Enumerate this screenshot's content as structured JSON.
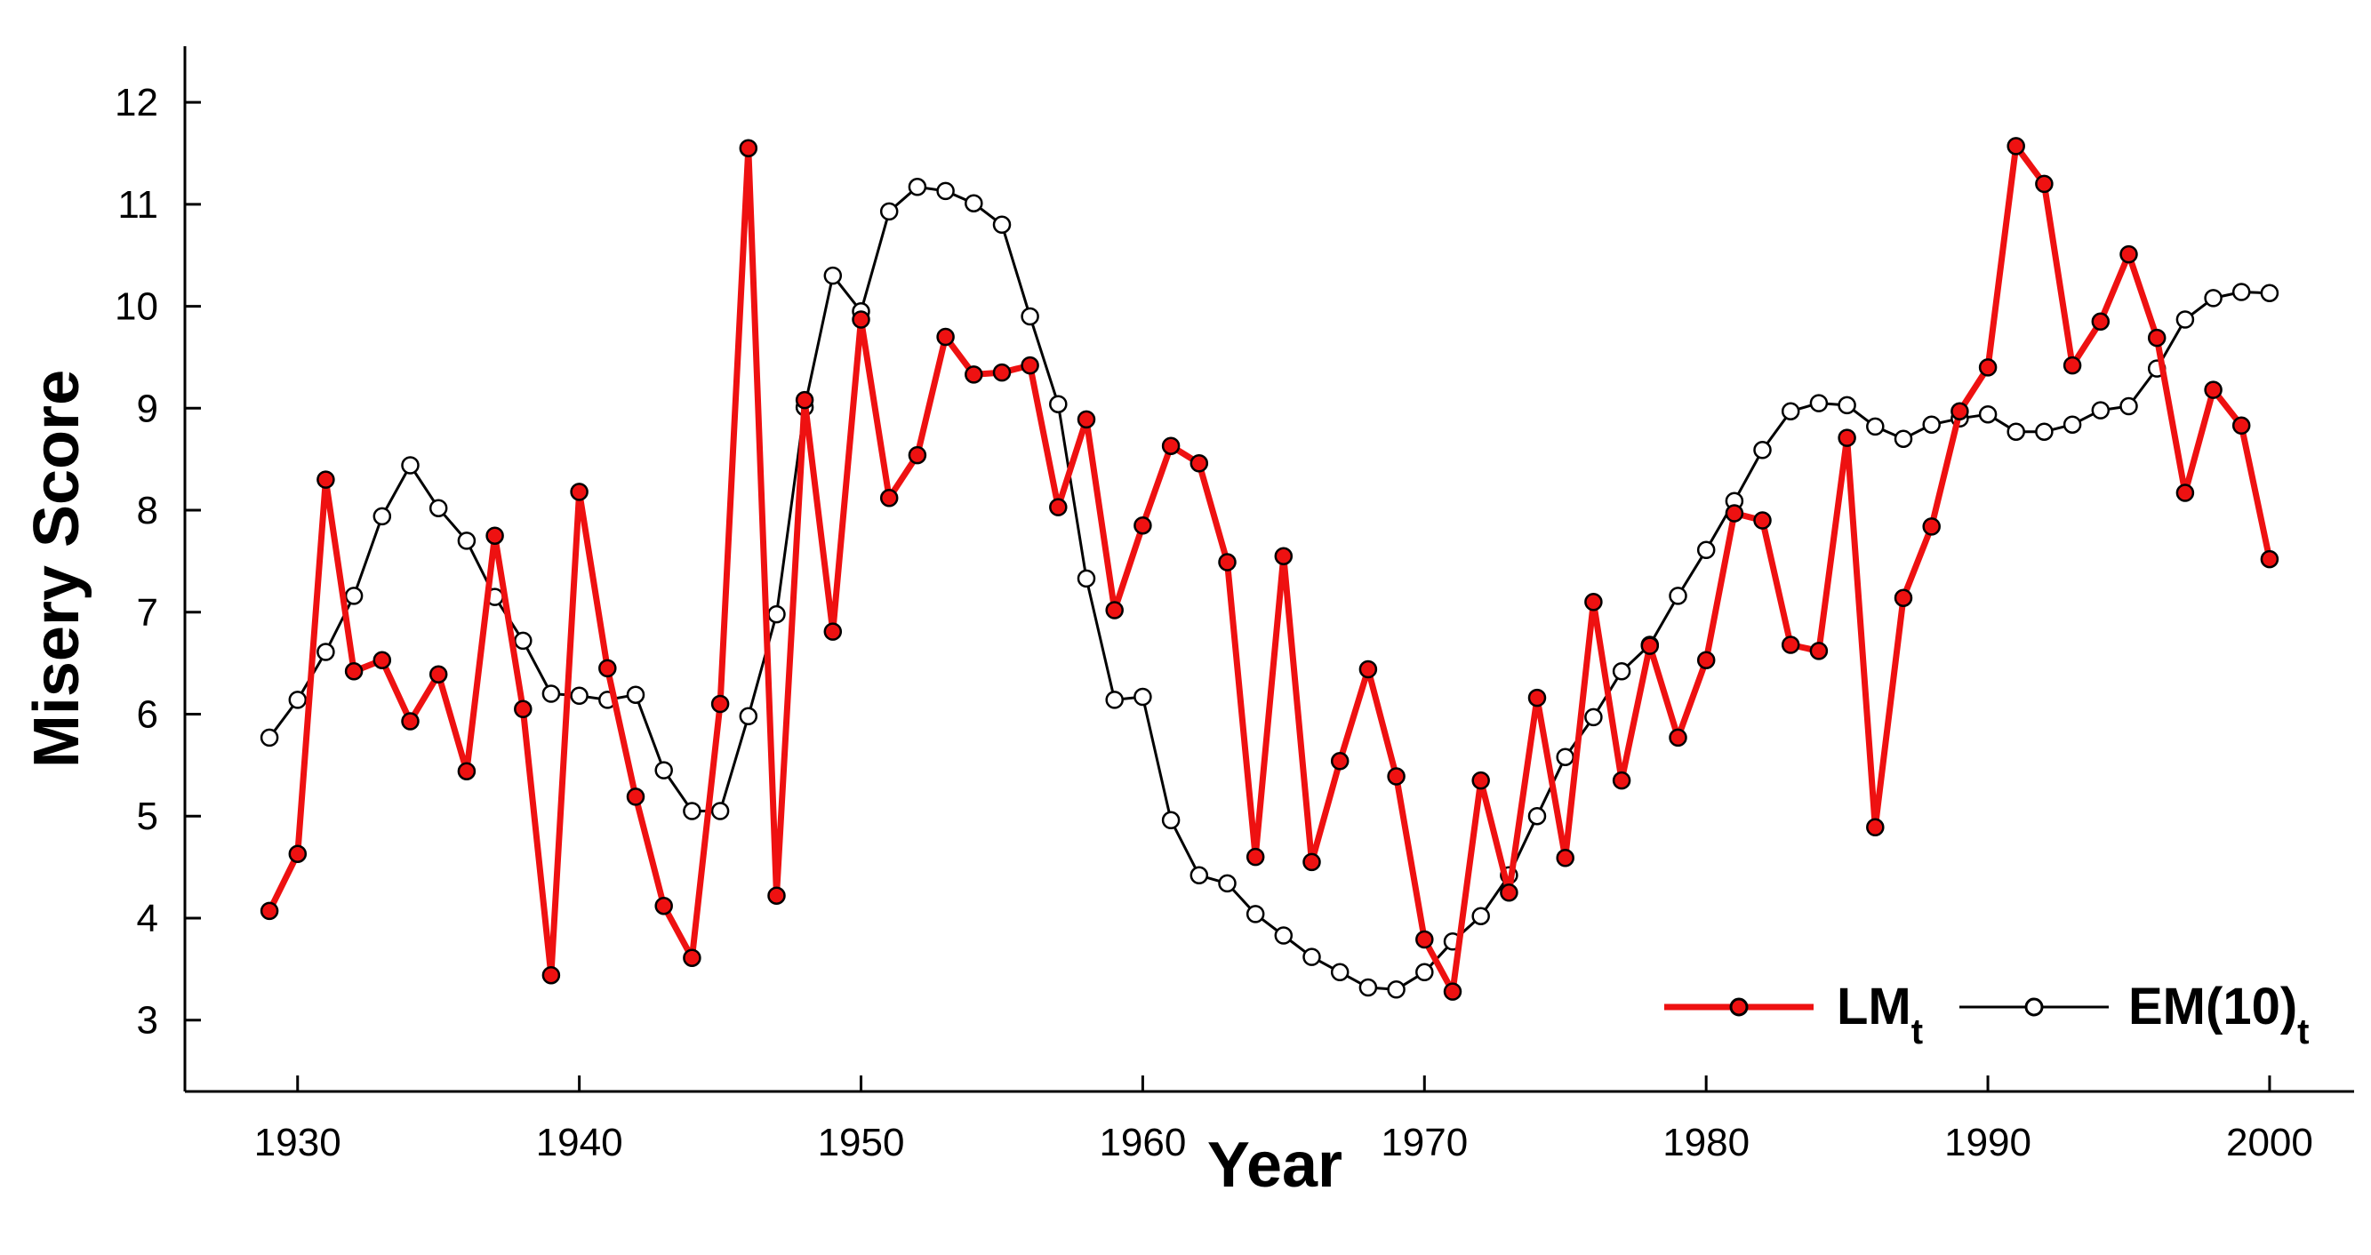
{
  "chart_data": {
    "type": "line",
    "xlabel": "Year",
    "ylabel": "Misery Score",
    "xlim": [
      1926,
      2003
    ],
    "ylim": [
      2.3,
      12.55
    ],
    "x_ticks": [
      1930,
      1940,
      1950,
      1960,
      1970,
      1980,
      1990,
      2000
    ],
    "y_ticks": [
      3,
      4,
      5,
      6,
      7,
      8,
      9,
      10,
      11,
      12
    ],
    "grid": false,
    "legend_position": "bottom-right",
    "colors": {
      "LM": "#ee1111",
      "EM": "#000000",
      "axis": "#000000",
      "marker_open_fill": "#ffffff"
    },
    "series": [
      {
        "name": "LM",
        "name_subscript": "t",
        "x_start": 1929,
        "values": [
          4.07,
          4.63,
          8.3,
          6.42,
          6.53,
          5.93,
          6.39,
          5.44,
          7.75,
          6.05,
          3.44,
          8.18,
          6.45,
          5.19,
          4.12,
          3.61,
          6.1,
          11.55,
          4.22,
          9.08,
          6.81,
          9.87,
          8.12,
          8.54,
          9.7,
          9.33,
          9.35,
          9.42,
          8.03,
          8.89,
          7.02,
          7.85,
          8.63,
          8.46,
          7.49,
          4.6,
          7.55,
          4.55,
          5.54,
          6.44,
          5.39,
          3.79,
          3.28,
          5.35,
          4.25,
          6.16,
          4.59,
          7.1,
          5.35,
          6.67,
          5.77,
          6.53,
          7.97,
          7.9,
          6.68,
          6.62,
          8.71,
          4.89,
          7.14,
          7.84,
          8.97,
          9.4,
          11.57,
          11.2,
          9.42,
          9.85,
          10.51,
          9.69,
          8.17,
          9.18,
          8.83,
          7.52
        ]
      },
      {
        "name": "EM(10)",
        "name_subscript": "t",
        "x_start": 1929,
        "values": [
          5.77,
          6.14,
          6.61,
          7.16,
          7.94,
          8.44,
          8.02,
          7.7,
          7.15,
          6.72,
          6.2,
          6.18,
          6.14,
          6.19,
          5.45,
          5.05,
          5.05,
          5.98,
          6.98,
          9.01,
          10.3,
          9.95,
          10.93,
          11.17,
          11.13,
          11.01,
          10.8,
          9.9,
          9.04,
          7.33,
          6.14,
          6.17,
          4.96,
          4.42,
          4.34,
          4.04,
          3.83,
          3.62,
          3.47,
          3.32,
          3.3,
          3.47,
          3.77,
          4.02,
          4.42,
          5.0,
          5.58,
          5.97,
          6.42,
          6.68,
          7.16,
          7.61,
          8.09,
          8.59,
          8.97,
          9.05,
          9.03,
          8.82,
          8.7,
          8.84,
          8.9,
          8.94,
          8.77,
          8.77,
          8.84,
          8.98,
          9.02,
          9.39,
          9.87,
          10.08,
          10.14,
          10.13
        ]
      }
    ]
  }
}
